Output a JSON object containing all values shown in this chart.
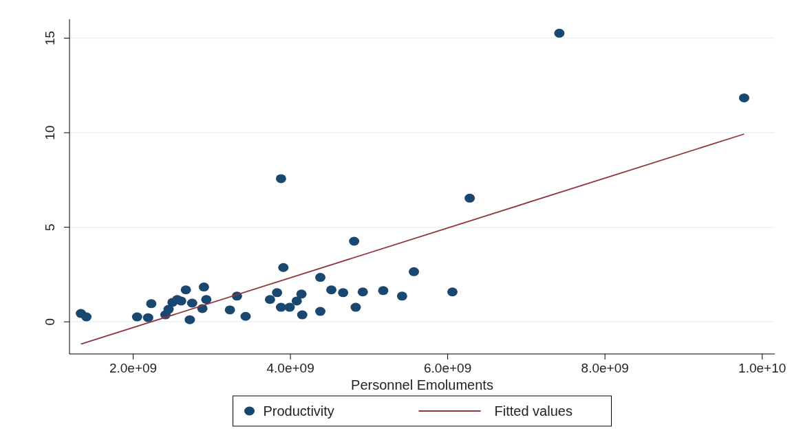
{
  "chart_data": {
    "type": "scatter",
    "xlabel": "Personnel Emoluments",
    "xlim": [
      1190000000.0,
      10160000000.0
    ],
    "xticks": [
      {
        "value": 2000000000.0,
        "label": "2.0e+09"
      },
      {
        "value": 4000000000.0,
        "label": "4.0e+09"
      },
      {
        "value": 6000000000.0,
        "label": "6.0e+09"
      },
      {
        "value": 8000000000.0,
        "label": "8.0e+09"
      },
      {
        "value": 10000000000.0,
        "label": "1.0e+10"
      }
    ],
    "ylim": [
      -1.7,
      16
    ],
    "yticks": [
      0,
      5,
      10,
      15
    ],
    "grid": "y",
    "legend": "bottom",
    "marker": "circle",
    "series": [
      {
        "name": "Productivity",
        "color": "#1a476f",
        "x": [
          1335000000.0,
          1405000000.0,
          2050000000.0,
          2190000000.0,
          2230000000.0,
          2410000000.0,
          2450000000.0,
          2500000000.0,
          2560000000.0,
          2610000000.0,
          2670000000.0,
          2720000000.0,
          2750000000.0,
          2880000000.0,
          2900000000.0,
          2930000000.0,
          3230000000.0,
          3320000000.0,
          3430000000.0,
          3740000000.0,
          3830000000.0,
          3880000000.0,
          3880000000.0,
          3910000000.0,
          3990000000.0,
          4080000000.0,
          4140000000.0,
          4150000000.0,
          4380000000.0,
          4380000000.0,
          4520000000.0,
          4670000000.0,
          4810000000.0,
          4830000000.0,
          4920000000.0,
          5180000000.0,
          5420000000.0,
          5570000000.0,
          6060000000.0,
          6280000000.0,
          7420000000.0,
          9770000000.0
        ],
        "values": [
          0.44,
          0.26,
          0.26,
          0.22,
          0.96,
          0.37,
          0.66,
          1.03,
          1.18,
          1.1,
          1.69,
          0.11,
          0.99,
          0.7,
          1.84,
          1.18,
          0.63,
          1.36,
          0.29,
          1.18,
          1.54,
          7.57,
          0.77,
          2.87,
          0.77,
          1.1,
          1.47,
          0.37,
          2.35,
          0.55,
          1.69,
          1.54,
          4.26,
          0.77,
          1.58,
          1.65,
          1.36,
          2.65,
          1.58,
          6.54,
          15.26,
          11.84
        ]
      },
      {
        "name": "Fitted values",
        "type": "line",
        "marker": "none",
        "color": "#90353b",
        "x": [
          1335000000.0,
          9770000000.0
        ],
        "values": [
          -1.18,
          9.93
        ]
      }
    ]
  }
}
